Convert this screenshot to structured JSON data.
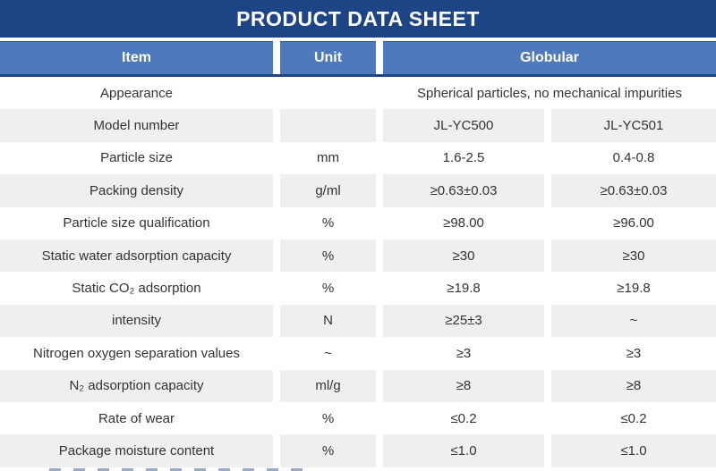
{
  "title": "PRODUCT DATA SHEET",
  "colors": {
    "title_bar": "#1d4586",
    "header_blue": "#4e79bd",
    "row_alt_gray": "#efefef",
    "text": "#333333"
  },
  "table": {
    "header": {
      "item": "Item",
      "unit": "Unit",
      "group": "Globular"
    },
    "appearance_row": {
      "item": "Appearance",
      "unit": "",
      "value": "Spherical particles, no mechanical impurities"
    },
    "rows": [
      {
        "item": "Model number",
        "unit": "",
        "v1": "JL-YC500",
        "v2": "JL-YC501"
      },
      {
        "item": "Particle size",
        "unit": "mm",
        "v1": "1.6-2.5",
        "v2": "0.4-0.8"
      },
      {
        "item": "Packing density",
        "unit": "g/ml",
        "v1": "≥0.63±0.03",
        "v2": "≥0.63±0.03"
      },
      {
        "item": "Particle size qualification",
        "unit": "%",
        "v1": "≥98.00",
        "v2": "≥96.00"
      },
      {
        "item": "Static water adsorption capacity",
        "unit": "%",
        "v1": "≥30",
        "v2": "≥30"
      },
      {
        "item": "Static CO₂ adsorption",
        "unit": "%",
        "v1": "≥19.8",
        "v2": "≥19.8"
      },
      {
        "item": "intensity",
        "unit": "N",
        "v1": "≥25±3",
        "v2": "~"
      },
      {
        "item": "Nitrogen oxygen separation values",
        "unit": "~",
        "v1": "≥3",
        "v2": "≥3"
      },
      {
        "item": "N₂ adsorption capacity",
        "unit": "ml/g",
        "v1": "≥8",
        "v2": "≥8"
      },
      {
        "item": "Rate of wear",
        "unit": "%",
        "v1": "≤0.2",
        "v2": "≤0.2"
      },
      {
        "item": "Package moisture content",
        "unit": "%",
        "v1": "≤1.0",
        "v2": "≤1.0"
      }
    ]
  }
}
